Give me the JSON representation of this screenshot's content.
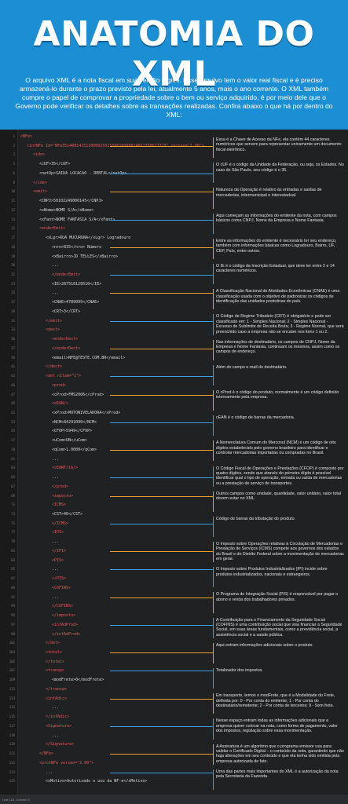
{
  "header": {
    "title": "ANATOMIA DO XML",
    "intro": "O arquivo XML é a nota fiscal em sua versão digital. Esse arquivo tem o valor real fiscal e é preciso armazená-lo durante o prazo previsto pela lei, atualmente 5 anos, mais o ano corrente. O XML também cumpre o papel de comprovar a propriedade sobre o bem ou serviço adquirido, é por meio dele que o Governo pode verificar os detalhes sobre as transações realizadas. Confira abaixo o que há por dentro do XML:"
  },
  "colors": {
    "header_bg": "#1c8fd4",
    "editor_bg": "#202123",
    "accent_orange": "#f0a030",
    "accent_blue": "#3aa0e6",
    "tag": "#e35b5b"
  },
  "code_lines": [
    {
      "n": "1",
      "t": "<NFe>"
    },
    {
      "n": "2",
      "t": "<infNFe Id=\"NFe35140814151100002931550010000024891350677379\" versao=\"2.00\">"
    },
    {
      "n": "3",
      "t": "<ide>"
    },
    {
      "n": "5",
      "t": "<cUF>35</cUF>"
    },
    {
      "n": "6",
      "t": "<natOp>SAIDA LOCACAO - RENTAL</natOp>"
    },
    {
      "n": "8",
      "t": "</ide>"
    },
    {
      "n": "10",
      "t": "<emit>"
    },
    {
      "n": "11",
      "t": "<CNPJ>58102249000145</CNPJ>"
    },
    {
      "n": "12",
      "t": "<xNome>NOME S/A</xNome>"
    },
    {
      "n": "13",
      "t": "<xFant>NOME FANTASIA S/A</xFant>"
    },
    {
      "n": "15",
      "t": "<enderEmit>"
    },
    {
      "n": "17",
      "t": "<xLgr>RUA MUCURUNA</xLgr> Logradouro"
    },
    {
      "n": "18",
      "t": "<nro>835</nro> Número"
    },
    {
      "n": "19",
      "t": "<xBairro>JD TELLES</xBairro>"
    },
    {
      "n": "20",
      "t": "..."
    },
    {
      "n": "21",
      "t": "</enderEmit>"
    },
    {
      "n": "23",
      "t": "<IE>287516129510</IE>"
    },
    {
      "n": "25",
      "t": "..."
    },
    {
      "n": "27",
      "t": "<CNAE>4789099</CNAE>"
    },
    {
      "n": "29",
      "t": "<CRT>3</CRT>"
    },
    {
      "n": "31",
      "t": "</emit>"
    },
    {
      "n": "33",
      "t": "<dest>"
    },
    {
      "n": "36",
      "t": "<enderDest>"
    },
    {
      "n": "37",
      "t": "</enderDest>"
    },
    {
      "n": "39",
      "t": "<email>NFE@TESTE.COM.BR</email>"
    },
    {
      "n": "41",
      "t": "</dest>"
    },
    {
      "n": "43",
      "t": "<det nItem=\"1\">"
    },
    {
      "n": "46",
      "t": "<prod>"
    },
    {
      "n": "47",
      "t": "<cProd>FMS2006</cProd>"
    },
    {
      "n": "49",
      "t": "<cEAN/>"
    },
    {
      "n": "51",
      "t": "<xProd>MOTONIVELADORA</xProd>"
    },
    {
      "n": "53",
      "t": "<NCM>84292090</NCM>"
    },
    {
      "n": "55",
      "t": "<CFOP>5949</CFOP>"
    },
    {
      "n": "57",
      "t": "<uCom>UN</uCom>"
    },
    {
      "n": "59",
      "t": "<qCom>1.0000</qCom>"
    },
    {
      "n": "61",
      "t": "..."
    },
    {
      "n": "63",
      "t": "<cEANTrib/>"
    },
    {
      "n": "65",
      "t": "..."
    },
    {
      "n": "67",
      "t": "</prod>"
    },
    {
      "n": "69",
      "t": "<imposto>"
    },
    {
      "n": "71",
      "t": "<ICMS>"
    },
    {
      "n": "73",
      "t": "<CST>40</CST>"
    },
    {
      "n": "75",
      "t": "</ICMS>"
    },
    {
      "n": "77",
      "t": "<IPI>"
    },
    {
      "n": "79",
      "t": "..."
    },
    {
      "n": "81",
      "t": "</IPI>"
    },
    {
      "n": "83",
      "t": "<PIS>"
    },
    {
      "n": "85",
      "t": "..."
    },
    {
      "n": "87",
      "t": "</PIS>"
    },
    {
      "n": "89",
      "t": "<COFINS>"
    },
    {
      "n": "91",
      "t": "..."
    },
    {
      "n": "93",
      "t": "</COFINS>"
    },
    {
      "n": "95",
      "t": "</imposto>"
    },
    {
      "n": "97",
      "t": "<infAdProd>"
    },
    {
      "n": "99",
      "t": "</infAdProd>"
    },
    {
      "n": "101",
      "t": "</det>"
    },
    {
      "n": "103",
      "t": "<total>"
    },
    {
      "n": "105",
      "t": "</total>"
    },
    {
      "n": "107",
      "t": "<transp>"
    },
    {
      "n": "109",
      "t": "<modFrete>0</modFrete>"
    },
    {
      "n": "111",
      "t": "</transp>"
    },
    {
      "n": "113",
      "t": "<infAdic>"
    },
    {
      "n": "114",
      "t": "..."
    },
    {
      "n": "115",
      "t": "</infAdic>"
    },
    {
      "n": "117",
      "t": "<Signature>"
    },
    {
      "n": "118",
      "t": "..."
    },
    {
      "n": "119",
      "t": "</Signature>"
    },
    {
      "n": "121",
      "t": "</NFe>"
    },
    {
      "n": "122",
      "t": "<protNFe versao=\"2.00\">"
    },
    {
      "n": "123",
      "t": "..."
    },
    {
      "n": "125",
      "t": "<xMotivo>Autorizado o uso da NF-e</xMotivo>"
    }
  ],
  "notes": [
    {
      "text": "Essa é a Chave de Acesso da NFe, ela contém 44 caracteres numéricos que servem para representar unicamente um documento fiscal eletrônico."
    },
    {
      "text": "O cUF é o código da Unidade da Federação, ou seja, os Estados. No caso de São Paulo, seu código é o 35."
    },
    {
      "text": "Natureza da Operação é relativo às entradas e saídas de mercadorias, intermunicipal e interestadual."
    },
    {
      "text": "Aqui começam as informações do emitente da nota, com campos básicos como CNPJ, Nome da Empresa e Nome Fantasia."
    },
    {
      "text": "Entre as informações do emitente é necessário ter seu endereço, também com informações básicas como Logradouro, Bairro, UF, CEP, País, entre outros."
    },
    {
      "text": "O IE é o código da Inscrição Estadual, que deve ter entre 2 e 14 caracteres numéricos."
    },
    {
      "text": "A Classificação Nacional de Atividades Econômicas (CNAE) é uma classificação usada com o objetivo de padronizar os códigos de identificação das unidades produtivas do país."
    },
    {
      "text": "O Código de Regime Tributário (CRT) é obrigatório e pode ser classificado em: 1 - Simples Nacional; 2 - Simples Nacional - Excesso de Sublimite de Receita Bruta; 3 - Regime Normal, que será preenchido caso a empresa não se encaixe nos itens 1 ou 2."
    },
    {
      "text": "Nas informações de destinatário, os campos de CNPJ, Nome da Empresa e Nome Fantasia, continuam os mesmos, assim como os campos de endereço."
    },
    {
      "text": "Além do campo e-mail do destinatário."
    },
    {
      "text": "O cProd é o código do produto, normalmente é um código definido internamente pela empresa."
    },
    {
      "text": "cEAN é o código de barras da mercadoria."
    },
    {
      "text": "A Nomenclatura Comum do Mercosul (NCM) é um código de oito dígitos estabelecido pelo governo brasileiro para identificar e controlar mercadorias importadas ou compradas no Brasil."
    },
    {
      "text": "O Código Fiscal de Operações e Prestações (CFOP) é composto por quatro dígitos, sendo que através do primeiro dígito é possível identificar qual o tipo de operação, entrada ou saída de mercadorias ou a prestação de serviço de transportes."
    },
    {
      "text": "Outros campos como unidade, quantidade, valor unitário, valor total devem estar no XML."
    },
    {
      "text": "Código de barras da tributação do produto."
    },
    {
      "text": "O Imposto sobre Operações relativas à Circulação de Mercadorias e Prestação de Serviços (ICMS) compete aos governos dos estados do Brasil e do Distrito Federal sobre a movimentação de mercadorias em geral."
    },
    {
      "text": "O Imposto sobre Produtos Industrializados (IPI) incide sobre produtos industrializados, nacionais e estrangeiros."
    },
    {
      "text": "O Programa de Integração Social (PIS) é responsável por pagar o abono e renda dos trabalhadores privados."
    },
    {
      "text": "A Contribuição para o Financiamento da Seguridade Social (COFINS) é uma contribuição social que visa financiar a Seguridade Social, em suas áreas fundamentais, como a previdência social, a assistência social e a saúde pública."
    },
    {
      "text": "Aqui entram informações adicionais sobre o produto."
    },
    {
      "text": "Totalizador dos impostos."
    },
    {
      "text": "Em transporte, temos o modFrete, que é a Modalidade do Frete, definida por: 0 - Por conta do emitente; 1 - Por conta do destinatário/remetente; 2 - Por conta de terceiros; 9 - Sem frete."
    },
    {
      "text": "Nesse espaço entram todas as informações adicionais que a empresa quiser colocar na nota, como forma de pagamento, valor dos impostos, legislação sobre essa movimentação."
    },
    {
      "text": "A Assinatura é um algoritmo que o programa emissor usa para validar o Certificado Digital – o conteúdo da nota, garantindo que não haja alterações em seu conteúdo e que ela tenha sido emitida pela empresa autorizada de fato."
    },
    {
      "text": "Uma das partes mais importantes do XML é a autorização da nota pela Secretaria da Fazenda."
    }
  ],
  "status_bar": "Line 124, Column 3"
}
